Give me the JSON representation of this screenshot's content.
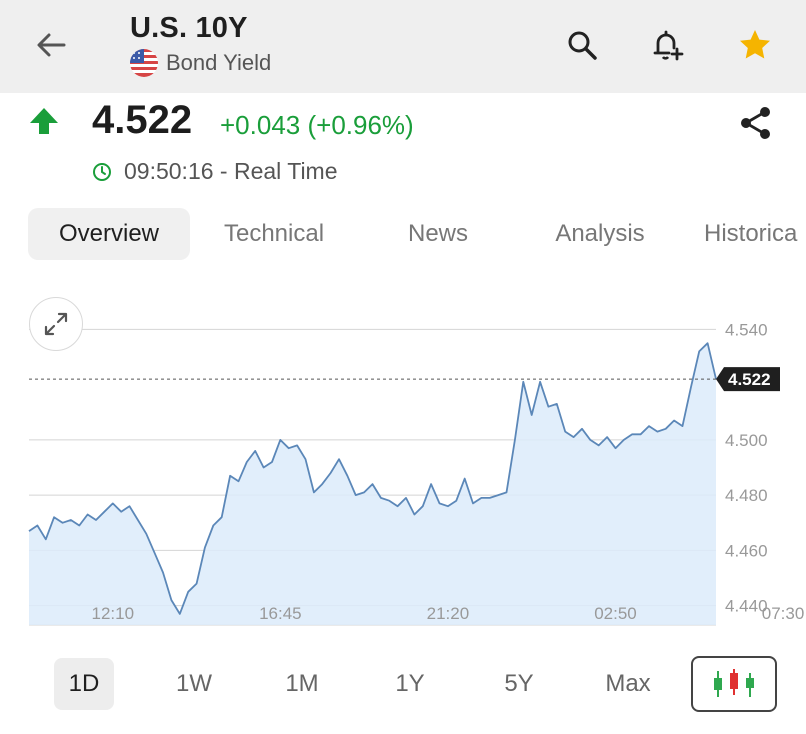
{
  "header": {
    "title": "U.S. 10Y",
    "subtitle": "Bond Yield",
    "icons": [
      "back-arrow-icon",
      "us-flag-icon",
      "search-icon",
      "add-alert-icon",
      "star-icon"
    ]
  },
  "quote": {
    "price": "4.522",
    "change": "+0.043 (+0.96%)",
    "time": "09:50:16 - Real Time",
    "direction": "up"
  },
  "tabs": [
    {
      "label": "Overview",
      "active": true
    },
    {
      "label": "Technical",
      "active": false
    },
    {
      "label": "News",
      "active": false
    },
    {
      "label": "Analysis",
      "active": false
    },
    {
      "label": "Historica",
      "active": false
    }
  ],
  "ranges": [
    {
      "label": "1D",
      "active": true
    },
    {
      "label": "1W",
      "active": false
    },
    {
      "label": "1M",
      "active": false
    },
    {
      "label": "1Y",
      "active": false
    },
    {
      "label": "5Y",
      "active": false
    },
    {
      "label": "Max",
      "active": false
    }
  ],
  "colors": {
    "up": "#1a9e3a",
    "star": "#f5b400",
    "line": "#5b87b8",
    "fill": "#dcebfa",
    "marker_bg": "#1f1f1f",
    "candle_up": "#2fa84f",
    "candle_down": "#e03131"
  },
  "chart_data": {
    "type": "area",
    "current_value": "4.522",
    "current_value_num": 4.522,
    "ylim": [
      4.433,
      4.547
    ],
    "y_ticks": [
      "4.540",
      "4.500",
      "4.480",
      "4.460",
      "4.440"
    ],
    "y_tick_values": [
      4.54,
      4.5,
      4.48,
      4.46,
      4.44
    ],
    "x_ticks": [
      "12:10",
      "16:45",
      "21:20",
      "02:50",
      "07:30"
    ],
    "x_tick_index": [
      10,
      30,
      50,
      70,
      90
    ],
    "grid": true,
    "series": [
      {
        "values": [
          4.467,
          4.469,
          4.464,
          4.472,
          4.47,
          4.471,
          4.469,
          4.473,
          4.471,
          4.474,
          4.477,
          4.474,
          4.476,
          4.471,
          4.466,
          4.459,
          4.452,
          4.442,
          4.437,
          4.445,
          4.448,
          4.461,
          4.469,
          4.472,
          4.487,
          4.485,
          4.492,
          4.496,
          4.49,
          4.492,
          4.5,
          4.497,
          4.498,
          4.493,
          4.481,
          4.484,
          4.488,
          4.493,
          4.487,
          4.48,
          4.481,
          4.484,
          4.479,
          4.478,
          4.476,
          4.479,
          4.473,
          4.476,
          4.484,
          4.477,
          4.476,
          4.478,
          4.486,
          4.477,
          4.479,
          4.479,
          4.48,
          4.481,
          4.5,
          4.521,
          4.509,
          4.521,
          4.512,
          4.513,
          4.503,
          4.501,
          4.504,
          4.5,
          4.498,
          4.501,
          4.497,
          4.5,
          4.502,
          4.502,
          4.505,
          4.503,
          4.504,
          4.507,
          4.505,
          4.519,
          4.532,
          4.535,
          4.522
        ]
      }
    ]
  }
}
